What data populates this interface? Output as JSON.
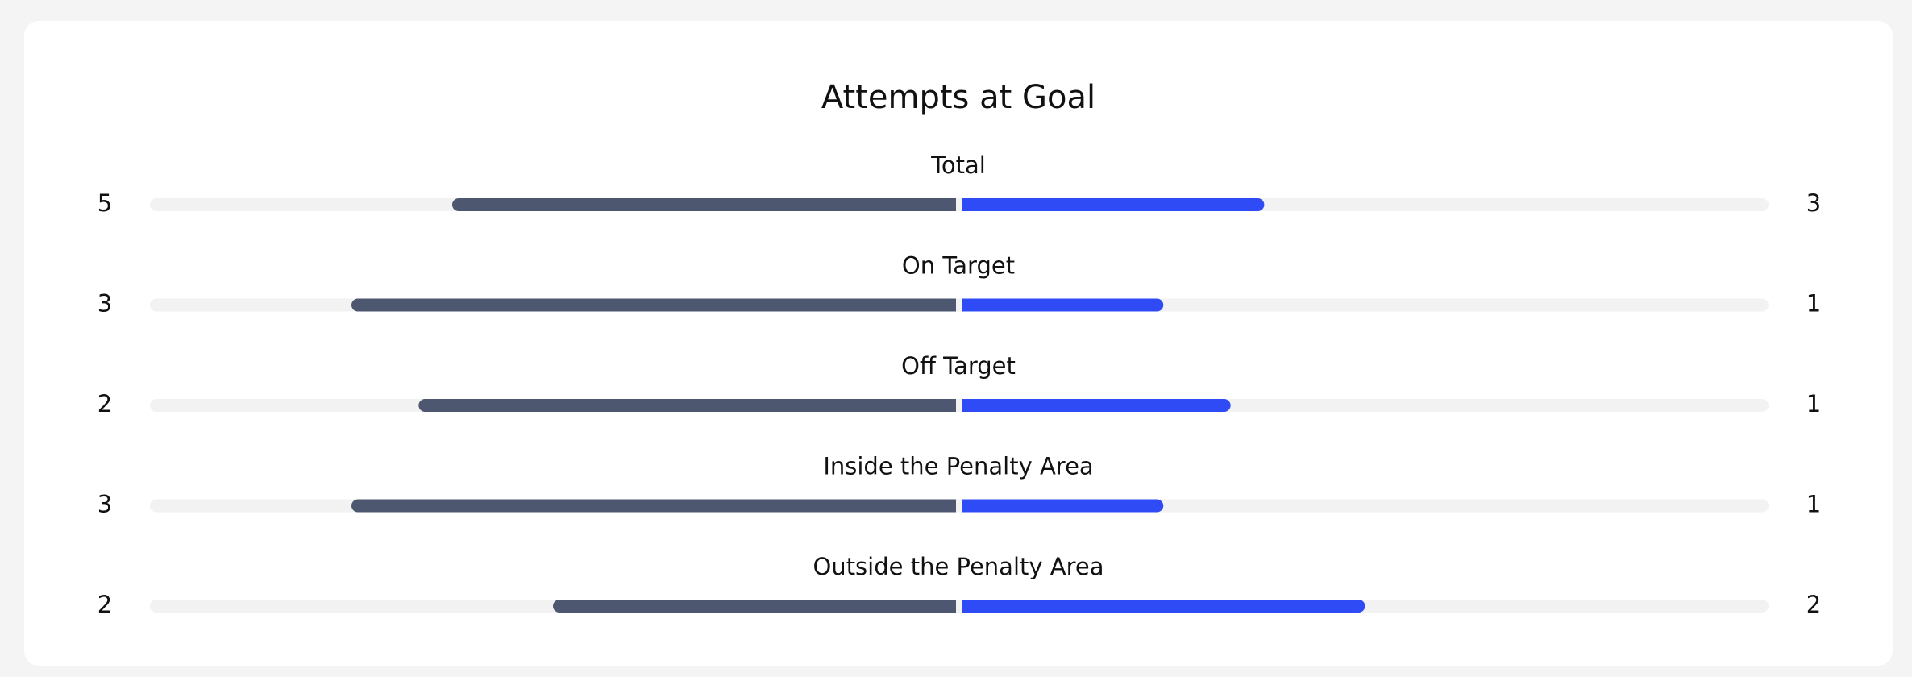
{
  "title": "Attempts at Goal",
  "home_color": "#4d5770",
  "away_color": "#2f4bf5",
  "rows": [
    {
      "label": "Total",
      "home": 5,
      "away": 3
    },
    {
      "label": "On Target",
      "home": 3,
      "away": 1
    },
    {
      "label": "Off Target",
      "home": 2,
      "away": 1
    },
    {
      "label": "Inside the Penalty Area",
      "home": 3,
      "away": 1
    },
    {
      "label": "Outside the Penalty Area",
      "home": 2,
      "away": 2
    }
  ]
}
